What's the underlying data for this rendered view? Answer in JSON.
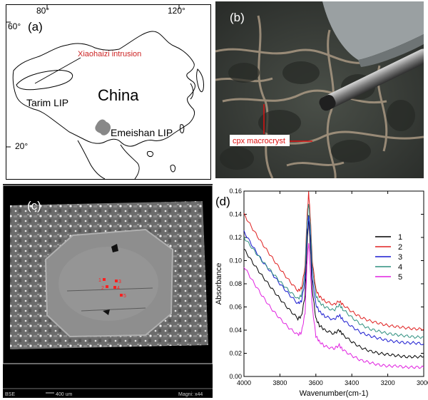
{
  "figure": {
    "panel_labels": [
      "(a)",
      "(b)",
      "(c)",
      "(d)"
    ]
  },
  "map": {
    "lon_labels": [
      "80°",
      "120°"
    ],
    "lat_labels": [
      "60°",
      "20°"
    ],
    "country": "China",
    "intrusion_label": "Xiaohaizi intrusion",
    "tarim_label": "Tarim LIP",
    "emeishan_label": "Emeishan LIP",
    "colors": {
      "intrusion": "#cc2222",
      "emeishan": "#888888"
    }
  },
  "photo": {
    "annotation": "cpx macrocryst",
    "annotation_color": "#dd1111"
  },
  "bse": {
    "footer_left": "BSE",
    "scale_label": "400 um",
    "magnification": "Magni: x44",
    "spot_labels": [
      "1",
      "2",
      "3",
      "4",
      "5"
    ],
    "spot_color": "#ff2020"
  },
  "chart_data": {
    "type": "line",
    "xlabel": "Wavenumber(cm-1)",
    "ylabel": "Absorbance",
    "xlim": [
      4000,
      3000
    ],
    "ylim": [
      0,
      0.16
    ],
    "xticks": [
      4000,
      3800,
      3600,
      3400,
      3200,
      3000
    ],
    "yticks": [
      0.0,
      0.02,
      0.04,
      0.06,
      0.08,
      0.1,
      0.12,
      0.14,
      0.16
    ],
    "legend_position": "top-right",
    "x": [
      4000,
      3950,
      3900,
      3850,
      3800,
      3750,
      3700,
      3680,
      3660,
      3650,
      3640,
      3630,
      3620,
      3600,
      3580,
      3550,
      3500,
      3470,
      3450,
      3400,
      3350,
      3300,
      3250,
      3200,
      3150,
      3100,
      3050,
      3000
    ],
    "series": [
      {
        "name": "1",
        "color": "#000000",
        "values": [
          0.11,
          0.098,
          0.087,
          0.077,
          0.067,
          0.058,
          0.05,
          0.052,
          0.07,
          0.11,
          0.138,
          0.11,
          0.075,
          0.05,
          0.044,
          0.04,
          0.037,
          0.04,
          0.036,
          0.03,
          0.025,
          0.022,
          0.02,
          0.019,
          0.018,
          0.017,
          0.017,
          0.017
        ]
      },
      {
        "name": "2",
        "color": "#e02020",
        "values": [
          0.14,
          0.127,
          0.115,
          0.104,
          0.093,
          0.083,
          0.074,
          0.076,
          0.095,
          0.135,
          0.159,
          0.135,
          0.1,
          0.075,
          0.069,
          0.065,
          0.062,
          0.065,
          0.062,
          0.056,
          0.051,
          0.048,
          0.046,
          0.044,
          0.043,
          0.042,
          0.041,
          0.041
        ]
      },
      {
        "name": "3",
        "color": "#1a1ad0",
        "values": [
          0.125,
          0.112,
          0.1,
          0.09,
          0.08,
          0.071,
          0.063,
          0.065,
          0.083,
          0.12,
          0.139,
          0.12,
          0.085,
          0.062,
          0.056,
          0.052,
          0.049,
          0.053,
          0.049,
          0.043,
          0.038,
          0.035,
          0.033,
          0.031,
          0.03,
          0.029,
          0.029,
          0.028
        ]
      },
      {
        "name": "4",
        "color": "#2f8f7f",
        "values": [
          0.12,
          0.11,
          0.1,
          0.091,
          0.082,
          0.074,
          0.067,
          0.07,
          0.09,
          0.13,
          0.15,
          0.13,
          0.095,
          0.07,
          0.064,
          0.06,
          0.057,
          0.062,
          0.058,
          0.051,
          0.045,
          0.041,
          0.039,
          0.037,
          0.036,
          0.035,
          0.034,
          0.034
        ]
      },
      {
        "name": "5",
        "color": "#e020e0",
        "values": [
          0.095,
          0.082,
          0.07,
          0.059,
          0.05,
          0.042,
          0.036,
          0.038,
          0.055,
          0.095,
          0.116,
          0.09,
          0.06,
          0.035,
          0.03,
          0.026,
          0.024,
          0.027,
          0.023,
          0.018,
          0.014,
          0.012,
          0.01,
          0.009,
          0.009,
          0.008,
          0.008,
          0.008
        ]
      }
    ]
  }
}
